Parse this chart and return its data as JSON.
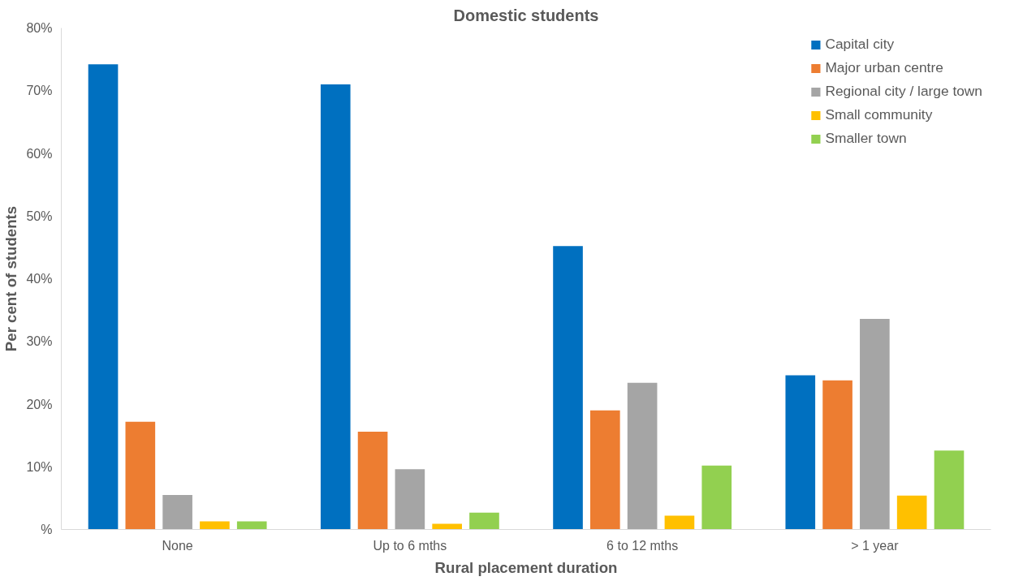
{
  "chart_data": {
    "type": "bar",
    "title": "Domestic students",
    "xlabel": "Rural placement duration",
    "ylabel": "Per cent of students",
    "categories": [
      "None",
      "Up to 6 mths",
      "6 to 12 mths",
      "> 1 year"
    ],
    "series": [
      {
        "name": "Capital city",
        "color": "#0070c0",
        "values": [
          74.2,
          71.0,
          45.2,
          24.6
        ]
      },
      {
        "name": "Major urban centre",
        "color": "#ed7d31",
        "values": [
          17.2,
          15.6,
          19.0,
          23.8
        ]
      },
      {
        "name": "Regional city / large town",
        "color": "#a5a5a5",
        "values": [
          5.5,
          9.6,
          23.4,
          33.6
        ]
      },
      {
        "name": "Small community",
        "color": "#ffc000",
        "values": [
          1.3,
          0.9,
          2.2,
          5.4
        ]
      },
      {
        "name": "Smaller town",
        "color": "#92d050",
        "values": [
          1.3,
          2.7,
          10.2,
          12.6
        ]
      }
    ],
    "ylim": [
      0,
      80
    ],
    "yticks": [
      {
        "value": 0,
        "label": "%"
      },
      {
        "value": 10,
        "label": "10%"
      },
      {
        "value": 20,
        "label": "20%"
      },
      {
        "value": 30,
        "label": "30%"
      },
      {
        "value": 40,
        "label": "40%"
      },
      {
        "value": 50,
        "label": "50%"
      },
      {
        "value": 60,
        "label": "60%"
      },
      {
        "value": 70,
        "label": "70%"
      },
      {
        "value": 80,
        "label": "80%"
      }
    ],
    "grid": false,
    "legend": "top right"
  }
}
